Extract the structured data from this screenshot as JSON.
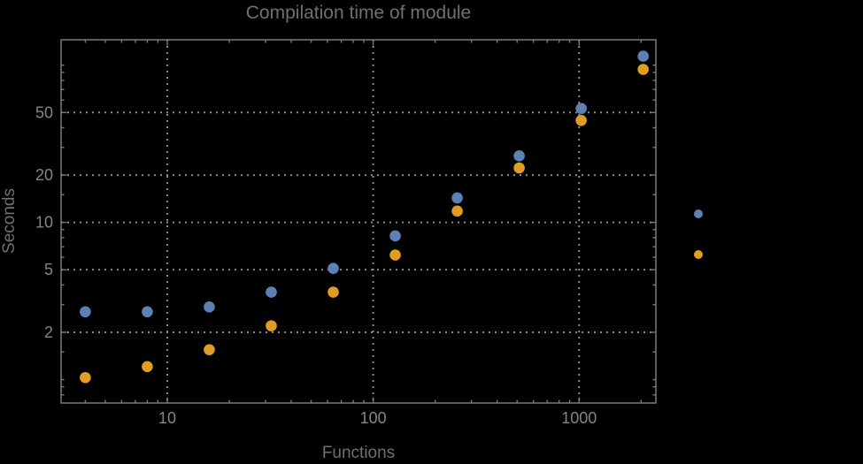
{
  "chart": {
    "title": "Compilation time of module",
    "xlabel": "Functions",
    "ylabel": "Seconds"
  },
  "chart_data": {
    "type": "scatter",
    "x_scale": "log",
    "y_scale": "log",
    "title": "Compilation time of module",
    "xlabel": "Functions",
    "ylabel": "Seconds",
    "x": [
      4,
      8,
      16,
      32,
      64,
      128,
      256,
      512,
      1024,
      2048
    ],
    "series": [
      {
        "marker_color": "#5E81B5",
        "values": [
          2.7,
          2.7,
          2.9,
          3.6,
          5.1,
          8.2,
          14.3,
          26.5,
          53,
          114
        ]
      },
      {
        "marker_color": "#E19C24",
        "values": [
          1.03,
          1.21,
          1.55,
          2.2,
          3.6,
          6.2,
          11.8,
          22.2,
          44.5,
          94
        ]
      }
    ],
    "xlim": [
      3.05,
      2360
    ],
    "ylim": [
      0.71,
      145
    ],
    "x_ticks": [
      10,
      100,
      1000
    ],
    "y_ticks": [
      2,
      5,
      10,
      20,
      50
    ],
    "x_minor_ticks": [
      4,
      5,
      6,
      7,
      8,
      9,
      20,
      30,
      40,
      50,
      60,
      70,
      80,
      90,
      200,
      300,
      400,
      500,
      600,
      700,
      800,
      900,
      2000
    ],
    "y_minor_ticks": [
      0.8,
      0.9,
      1,
      1.5,
      3,
      4,
      6,
      7,
      8,
      9,
      15,
      30,
      40,
      60,
      70,
      80,
      90,
      100
    ],
    "grid": true,
    "gridlines_x": [
      10,
      100,
      1000
    ],
    "gridlines_y": [
      2,
      5,
      10,
      20,
      50
    ],
    "legend": {
      "position": "outside-right",
      "labels_visible": false,
      "markers": [
        {
          "color": "#5E81B5"
        },
        {
          "color": "#E19C24"
        }
      ]
    },
    "colors": {
      "background": "#000000",
      "frame": "#7a7a7a",
      "grid": "#8a8a8a",
      "tick_labels": "#858585",
      "title": "#6f6f6f",
      "axis_labels": "#6f6f6f"
    }
  }
}
